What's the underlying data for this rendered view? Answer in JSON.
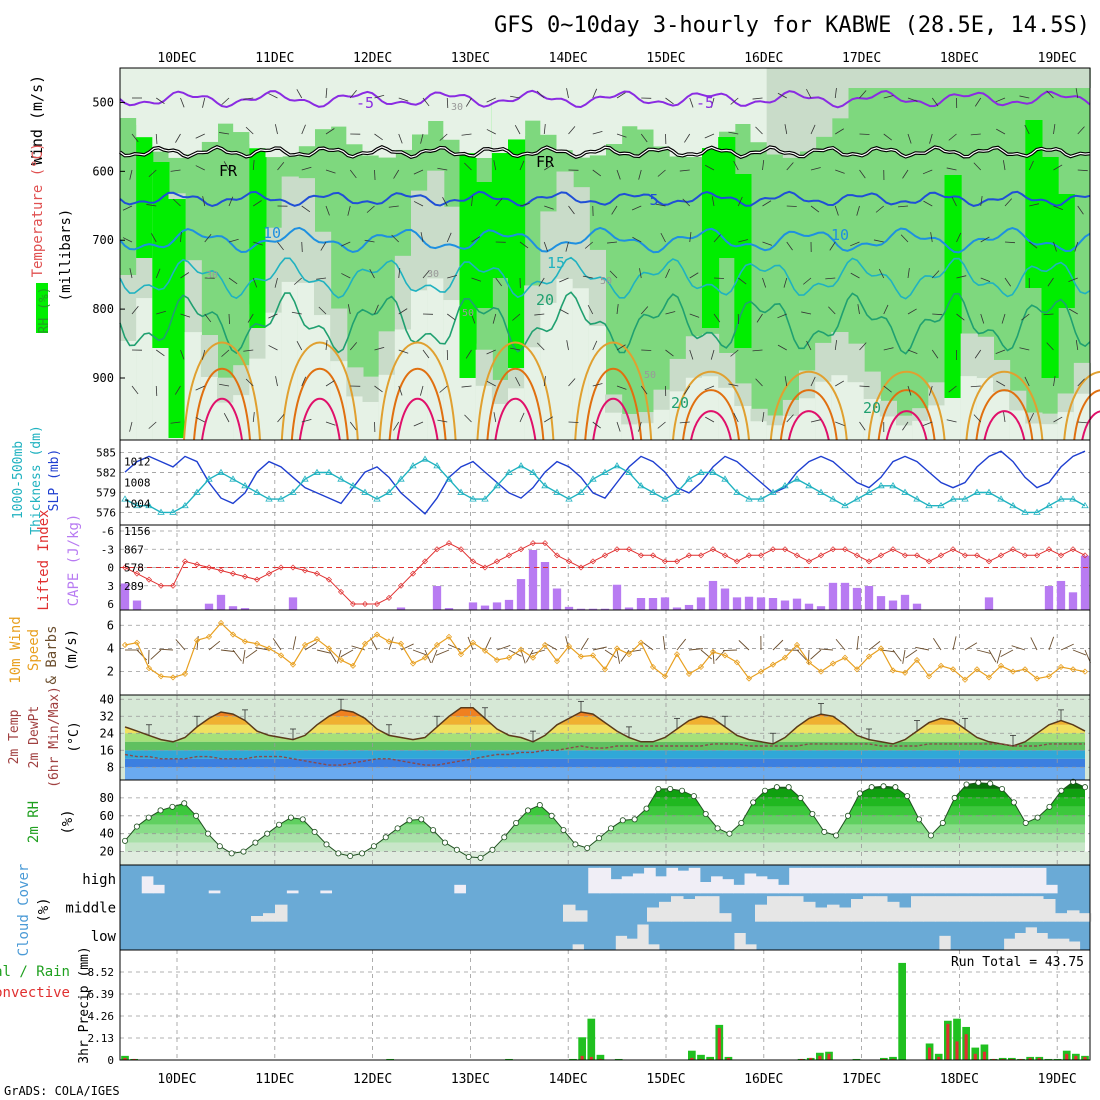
{
  "title": "GFS 0~10day 3-hourly for KABWE (28.5E, 14.5S)",
  "footer": "GrADS: COLA/IGES",
  "x_axis": {
    "ticks": [
      "10DEC",
      "11DEC",
      "12DEC",
      "13DEC",
      "14DEC",
      "15DEC",
      "16DEC",
      "17DEC",
      "18DEC",
      "19DEC"
    ]
  },
  "panels": {
    "upper_air": {
      "labels": [
        "Wind (m/s)",
        "Temperature (°C)",
        "RH (%)",
        "(millibars)"
      ],
      "y_ticks": [
        "500",
        "600",
        "700",
        "800",
        "900"
      ],
      "contour_labels": [
        "-5",
        "-5",
        "FR",
        "FR",
        "5",
        "10",
        "10",
        "15",
        "20",
        "20",
        "20",
        "30",
        "30",
        "30",
        "50",
        "50",
        "50"
      ],
      "colors": {
        "rh_bright": "#00ee00",
        "rh_mid": "#7ed87e",
        "rh_light": "#c9dcc9",
        "rh_pale": "#e6f2e6",
        "t_minus5": "#8a2be2",
        "t_0": "#000000",
        "t_5": "#1f4fd6",
        "t_10": "#1e90e0",
        "t_15": "#20b2c0",
        "t_20": "#20a070",
        "t_25": "#e0a030",
        "t_30": "#e07010",
        "t_35": "#e0106a"
      }
    },
    "thickness_slp": {
      "labels": [
        "1000-500mb",
        "Thickness (dm)",
        "SLP (mb)"
      ],
      "y_ticks_left": [
        "585",
        "582",
        "579",
        "576"
      ],
      "y_ticks_right": [
        "1012",
        "1008",
        "1004"
      ],
      "colors": {
        "thickness": "#20b2c0",
        "slp": "#1f3fd0"
      }
    },
    "cape_li": {
      "labels": [
        "Lifted Index",
        "CAPE (J/kg)"
      ],
      "y_ticks_left": [
        "-6",
        "-3",
        "0",
        "3",
        "6"
      ],
      "y_ticks_right": [
        "1156",
        "867",
        "578",
        "289"
      ],
      "colors": {
        "cape": "#b87bf2",
        "li": "#e03030"
      }
    },
    "wind10m": {
      "labels": [
        "10m Wind",
        "Speed",
        "& Barbs",
        "(m/s)"
      ],
      "y_ticks": [
        "6",
        "4",
        "2"
      ],
      "colors": {
        "speed": "#e8a020",
        "barb": "#6b4e2e"
      }
    },
    "temp2m": {
      "labels": [
        "2m Temp",
        "2m DewPt",
        "(6hr Min/Max)",
        "(°C)"
      ],
      "y_ticks": [
        "40",
        "32",
        "24",
        "16",
        "8"
      ]
    },
    "rh2m": {
      "labels": [
        "2m RH",
        "(%)"
      ],
      "y_ticks": [
        "80",
        "60",
        "40",
        "20"
      ]
    },
    "cloud": {
      "labels": [
        "Cloud Cover",
        "(%)"
      ],
      "levels": [
        "high",
        "middle",
        "low"
      ],
      "colors": {
        "sky": "#6aaad6",
        "cloud": "#e6e6e6"
      }
    },
    "precip": {
      "labels": [
        "Total / Rain",
        "Convective",
        "3hr Precip (mm)"
      ],
      "y_ticks": [
        "8.52",
        "6.39",
        "4.26",
        "2.13",
        "0"
      ],
      "run_total": "Run Total = 43.75",
      "colors": {
        "total": "#20c020",
        "convective": "#e03030"
      }
    }
  },
  "chart_data": [
    {
      "type": "line",
      "title": "1000-500mb Thickness (dm) / SLP (mb)",
      "series": [
        {
          "name": "SLP (mb)",
          "values": [
            1010,
            1012,
            1013,
            1012,
            1011,
            1013,
            1012,
            1008,
            1005,
            1004,
            1006,
            1010,
            1012,
            1011,
            1009,
            1007,
            1006,
            1005,
            1004,
            1007,
            1010,
            1011,
            1009,
            1006,
            1004,
            1002,
            1005,
            1009,
            1011,
            1012,
            1010,
            1008,
            1006,
            1005,
            1007,
            1010,
            1012,
            1011,
            1009,
            1006,
            1005,
            1008,
            1011,
            1013,
            1012,
            1010,
            1007,
            1006,
            1008,
            1011,
            1013,
            1012,
            1010,
            1008,
            1006,
            1007,
            1010,
            1012,
            1013,
            1012,
            1010,
            1008,
            1007,
            1009,
            1012,
            1013,
            1012,
            1010,
            1008,
            1007,
            1008,
            1011,
            1013,
            1014,
            1012,
            1009,
            1007,
            1008,
            1011,
            1013,
            1014
          ]
        },
        {
          "name": "Thickness (dm)",
          "values": [
            578,
            577,
            577,
            576,
            576,
            577,
            579,
            581,
            582,
            581,
            580,
            579,
            578,
            578,
            579,
            581,
            582,
            582,
            581,
            580,
            579,
            578,
            579,
            581,
            583,
            584,
            583,
            581,
            579,
            578,
            578,
            580,
            582,
            583,
            582,
            580,
            579,
            578,
            579,
            581,
            582,
            583,
            582,
            580,
            579,
            578,
            579,
            581,
            582,
            582,
            581,
            579,
            578,
            578,
            579,
            580,
            581,
            580,
            579,
            578,
            577,
            578,
            579,
            580,
            580,
            579,
            578,
            577,
            577,
            578,
            578,
            579,
            579,
            578,
            577,
            576,
            576,
            577,
            578,
            578,
            577
          ]
        }
      ]
    },
    {
      "type": "bar",
      "title": "CAPE (J/kg) / Lifted Index",
      "series": [
        {
          "name": "CAPE (J/kg)",
          "values": [
            420,
            150,
            0,
            0,
            0,
            0,
            0,
            100,
            240,
            60,
            30,
            0,
            0,
            0,
            200,
            0,
            0,
            0,
            0,
            0,
            0,
            0,
            0,
            40,
            0,
            0,
            380,
            30,
            0,
            120,
            70,
            120,
            160,
            490,
            950,
            760,
            340,
            50,
            20,
            20,
            20,
            400,
            40,
            190,
            190,
            200,
            40,
            80,
            200,
            460,
            340,
            200,
            210,
            200,
            190,
            150,
            180,
            100,
            60,
            430,
            430,
            350,
            380,
            220,
            150,
            240,
            100,
            0,
            0,
            0,
            0,
            0,
            200,
            0,
            0,
            0,
            0,
            380,
            460,
            280,
            860
          ]
        },
        {
          "name": "Lifted Index",
          "values": [
            0,
            1,
            2,
            3,
            3,
            -1,
            -0.5,
            0,
            0.5,
            1,
            1.5,
            2,
            1,
            0,
            0,
            0.5,
            1,
            2,
            4,
            6,
            6,
            6,
            5,
            3,
            1,
            -1,
            -3,
            -4,
            -3,
            -1,
            0,
            -1,
            -2,
            -3,
            -4,
            -4,
            -2,
            -1,
            0,
            -1,
            -2,
            -3,
            -3,
            -2,
            -2,
            -1,
            -1,
            -2,
            -2,
            -3,
            -2,
            -1,
            -2,
            -2,
            -3,
            -3,
            -2,
            -1,
            -2,
            -3,
            -3,
            -2,
            -1,
            -2,
            -3,
            -2,
            -2,
            -1,
            -2,
            -3,
            -2,
            -2,
            -1,
            -2,
            -3,
            -2,
            -2,
            -3,
            -2,
            -3,
            -2
          ]
        }
      ]
    },
    {
      "type": "line",
      "title": "10m Wind Speed (m/s)",
      "series": [
        {
          "name": "Speed",
          "values": [
            4.3,
            4.5,
            2.3,
            1.6,
            1.5,
            1.8,
            4.7,
            5,
            6.2,
            5.2,
            4.6,
            4.4,
            4,
            3.4,
            2.6,
            4.3,
            4.8,
            4,
            3,
            2.5,
            4.4,
            5.2,
            4.6,
            4.4,
            2.7,
            3.2,
            4.3,
            5,
            3.5,
            4.5,
            3.8,
            3,
            3.2,
            3.9,
            3.2,
            4.3,
            2.9,
            4.2,
            3.3,
            3.4,
            2.2,
            4,
            3.5,
            4.5,
            2.4,
            1.6,
            3.5,
            1.8,
            2.4,
            3.7,
            3.4,
            2.8,
            1.4,
            2,
            2.6,
            3.2,
            4.3,
            2.8,
            2,
            2.7,
            3.2,
            2.2,
            3.3,
            4,
            2.1,
            1.9,
            3,
            1.6,
            2.5,
            2.2,
            1.3,
            2.2,
            1.5,
            2.5,
            2,
            2.2,
            1.4,
            1.6,
            2.4,
            2.2,
            2
          ]
        }
      ]
    },
    {
      "type": "area",
      "title": "2m Temp / 2m DewPt (°C)",
      "series": [
        {
          "name": "2m Temp",
          "values": [
            27,
            25,
            23,
            21,
            20,
            22,
            27,
            31,
            34,
            33,
            30,
            25,
            23,
            22,
            21,
            23,
            28,
            32,
            35,
            34,
            31,
            26,
            23,
            22,
            21,
            22,
            27,
            32,
            36,
            36,
            31,
            26,
            23,
            22,
            20,
            23,
            28,
            31,
            34,
            33,
            29,
            25,
            22,
            20,
            20,
            22,
            26,
            30,
            32,
            31,
            27,
            23,
            21,
            20,
            19,
            22,
            27,
            31,
            33,
            32,
            28,
            23,
            21,
            20,
            19,
            21,
            25,
            29,
            31,
            30,
            26,
            22,
            20,
            19,
            18,
            20,
            24,
            28,
            30,
            28,
            25
          ]
        },
        {
          "name": "2m DewPt",
          "values": [
            14,
            13,
            13,
            12,
            12,
            12,
            13,
            13,
            12,
            12,
            12,
            13,
            13,
            13,
            12,
            11,
            10,
            9,
            9,
            10,
            11,
            12,
            12,
            11,
            10,
            9,
            9,
            10,
            11,
            12,
            13,
            14,
            14,
            15,
            15,
            16,
            16,
            17,
            18,
            17,
            17,
            18,
            18,
            18,
            18,
            18,
            18,
            18,
            18,
            19,
            19,
            19,
            18,
            18,
            18,
            18,
            18,
            19,
            19,
            19,
            19,
            19,
            19,
            18,
            18,
            18,
            18,
            19,
            19,
            19,
            19,
            19,
            19,
            19,
            18,
            18,
            18,
            19,
            19,
            19,
            19
          ]
        }
      ]
    },
    {
      "type": "area",
      "title": "2m RH (%)",
      "series": [
        {
          "name": "2m RH",
          "values": [
            32,
            48,
            58,
            66,
            70,
            74,
            60,
            40,
            26,
            18,
            20,
            30,
            40,
            50,
            58,
            56,
            42,
            28,
            18,
            15,
            18,
            26,
            36,
            46,
            55,
            56,
            44,
            30,
            22,
            14,
            13,
            22,
            36,
            52,
            66,
            72,
            60,
            44,
            28,
            24,
            35,
            46,
            55,
            56,
            68,
            90,
            90,
            88,
            82,
            62,
            46,
            40,
            52,
            75,
            88,
            92,
            92,
            80,
            62,
            42,
            38,
            60,
            85,
            92,
            93,
            92,
            82,
            56,
            38,
            52,
            80,
            95,
            97,
            96,
            90,
            75,
            52,
            58,
            70,
            88,
            98,
            92
          ]
        }
      ]
    },
    {
      "type": "bar",
      "title": "3hr Precip (mm)",
      "series": [
        {
          "name": "Total",
          "values": [
            0.4,
            0.1,
            0,
            0,
            0,
            0,
            0,
            0,
            0,
            0,
            0,
            0,
            0,
            0,
            0,
            0,
            0,
            0,
            0,
            0,
            0,
            0,
            0,
            0,
            0,
            0,
            0,
            0,
            0,
            0.1,
            0,
            0,
            0,
            0,
            0,
            0,
            0,
            0,
            0,
            0,
            0,
            0,
            0.1,
            0,
            0,
            0,
            0,
            0,
            0,
            0.1,
            2.2,
            4,
            0.5,
            0,
            0.1,
            0,
            0,
            0,
            0,
            0,
            0,
            0,
            0.9,
            0.5,
            0.3,
            3.4,
            0.3,
            0,
            0,
            0,
            0,
            0,
            0,
            0,
            0.1,
            0.2,
            0.7,
            0.8,
            0,
            0,
            0.1,
            0,
            0,
            0.2,
            0.3,
            9.4,
            0,
            0,
            1.6,
            0.6,
            3.8,
            4,
            3.2,
            1.2,
            1.5,
            0.1,
            0.2,
            0.2,
            0.1,
            0.3,
            0.3,
            0.1,
            0.1,
            0.9,
            0.6,
            0.4
          ]
        },
        {
          "name": "Convective",
          "values": [
            0.2,
            0.1,
            0,
            0,
            0,
            0,
            0,
            0,
            0,
            0,
            0,
            0,
            0,
            0,
            0,
            0,
            0,
            0,
            0,
            0,
            0,
            0,
            0,
            0,
            0,
            0,
            0,
            0,
            0,
            0,
            0,
            0,
            0,
            0,
            0,
            0,
            0,
            0,
            0,
            0,
            0,
            0,
            0,
            0,
            0,
            0,
            0,
            0,
            0,
            0,
            0.4,
            0.3,
            0.1,
            0,
            0,
            0,
            0,
            0,
            0,
            0,
            0,
            0,
            0.2,
            0.1,
            0.1,
            3.1,
            0.2,
            0,
            0,
            0,
            0,
            0,
            0,
            0,
            0.1,
            0.2,
            0.4,
            0.6,
            0,
            0,
            0,
            0,
            0,
            0.1,
            0.1,
            0,
            0,
            0,
            1.2,
            0.3,
            3.5,
            1.8,
            2.5,
            0.6,
            0.8,
            0.1,
            0.1,
            0.1,
            0.1,
            0.2,
            0.2,
            0,
            0,
            0.6,
            0.4,
            0.3
          ]
        }
      ],
      "ylim": [
        0,
        10.65
      ]
    }
  ]
}
